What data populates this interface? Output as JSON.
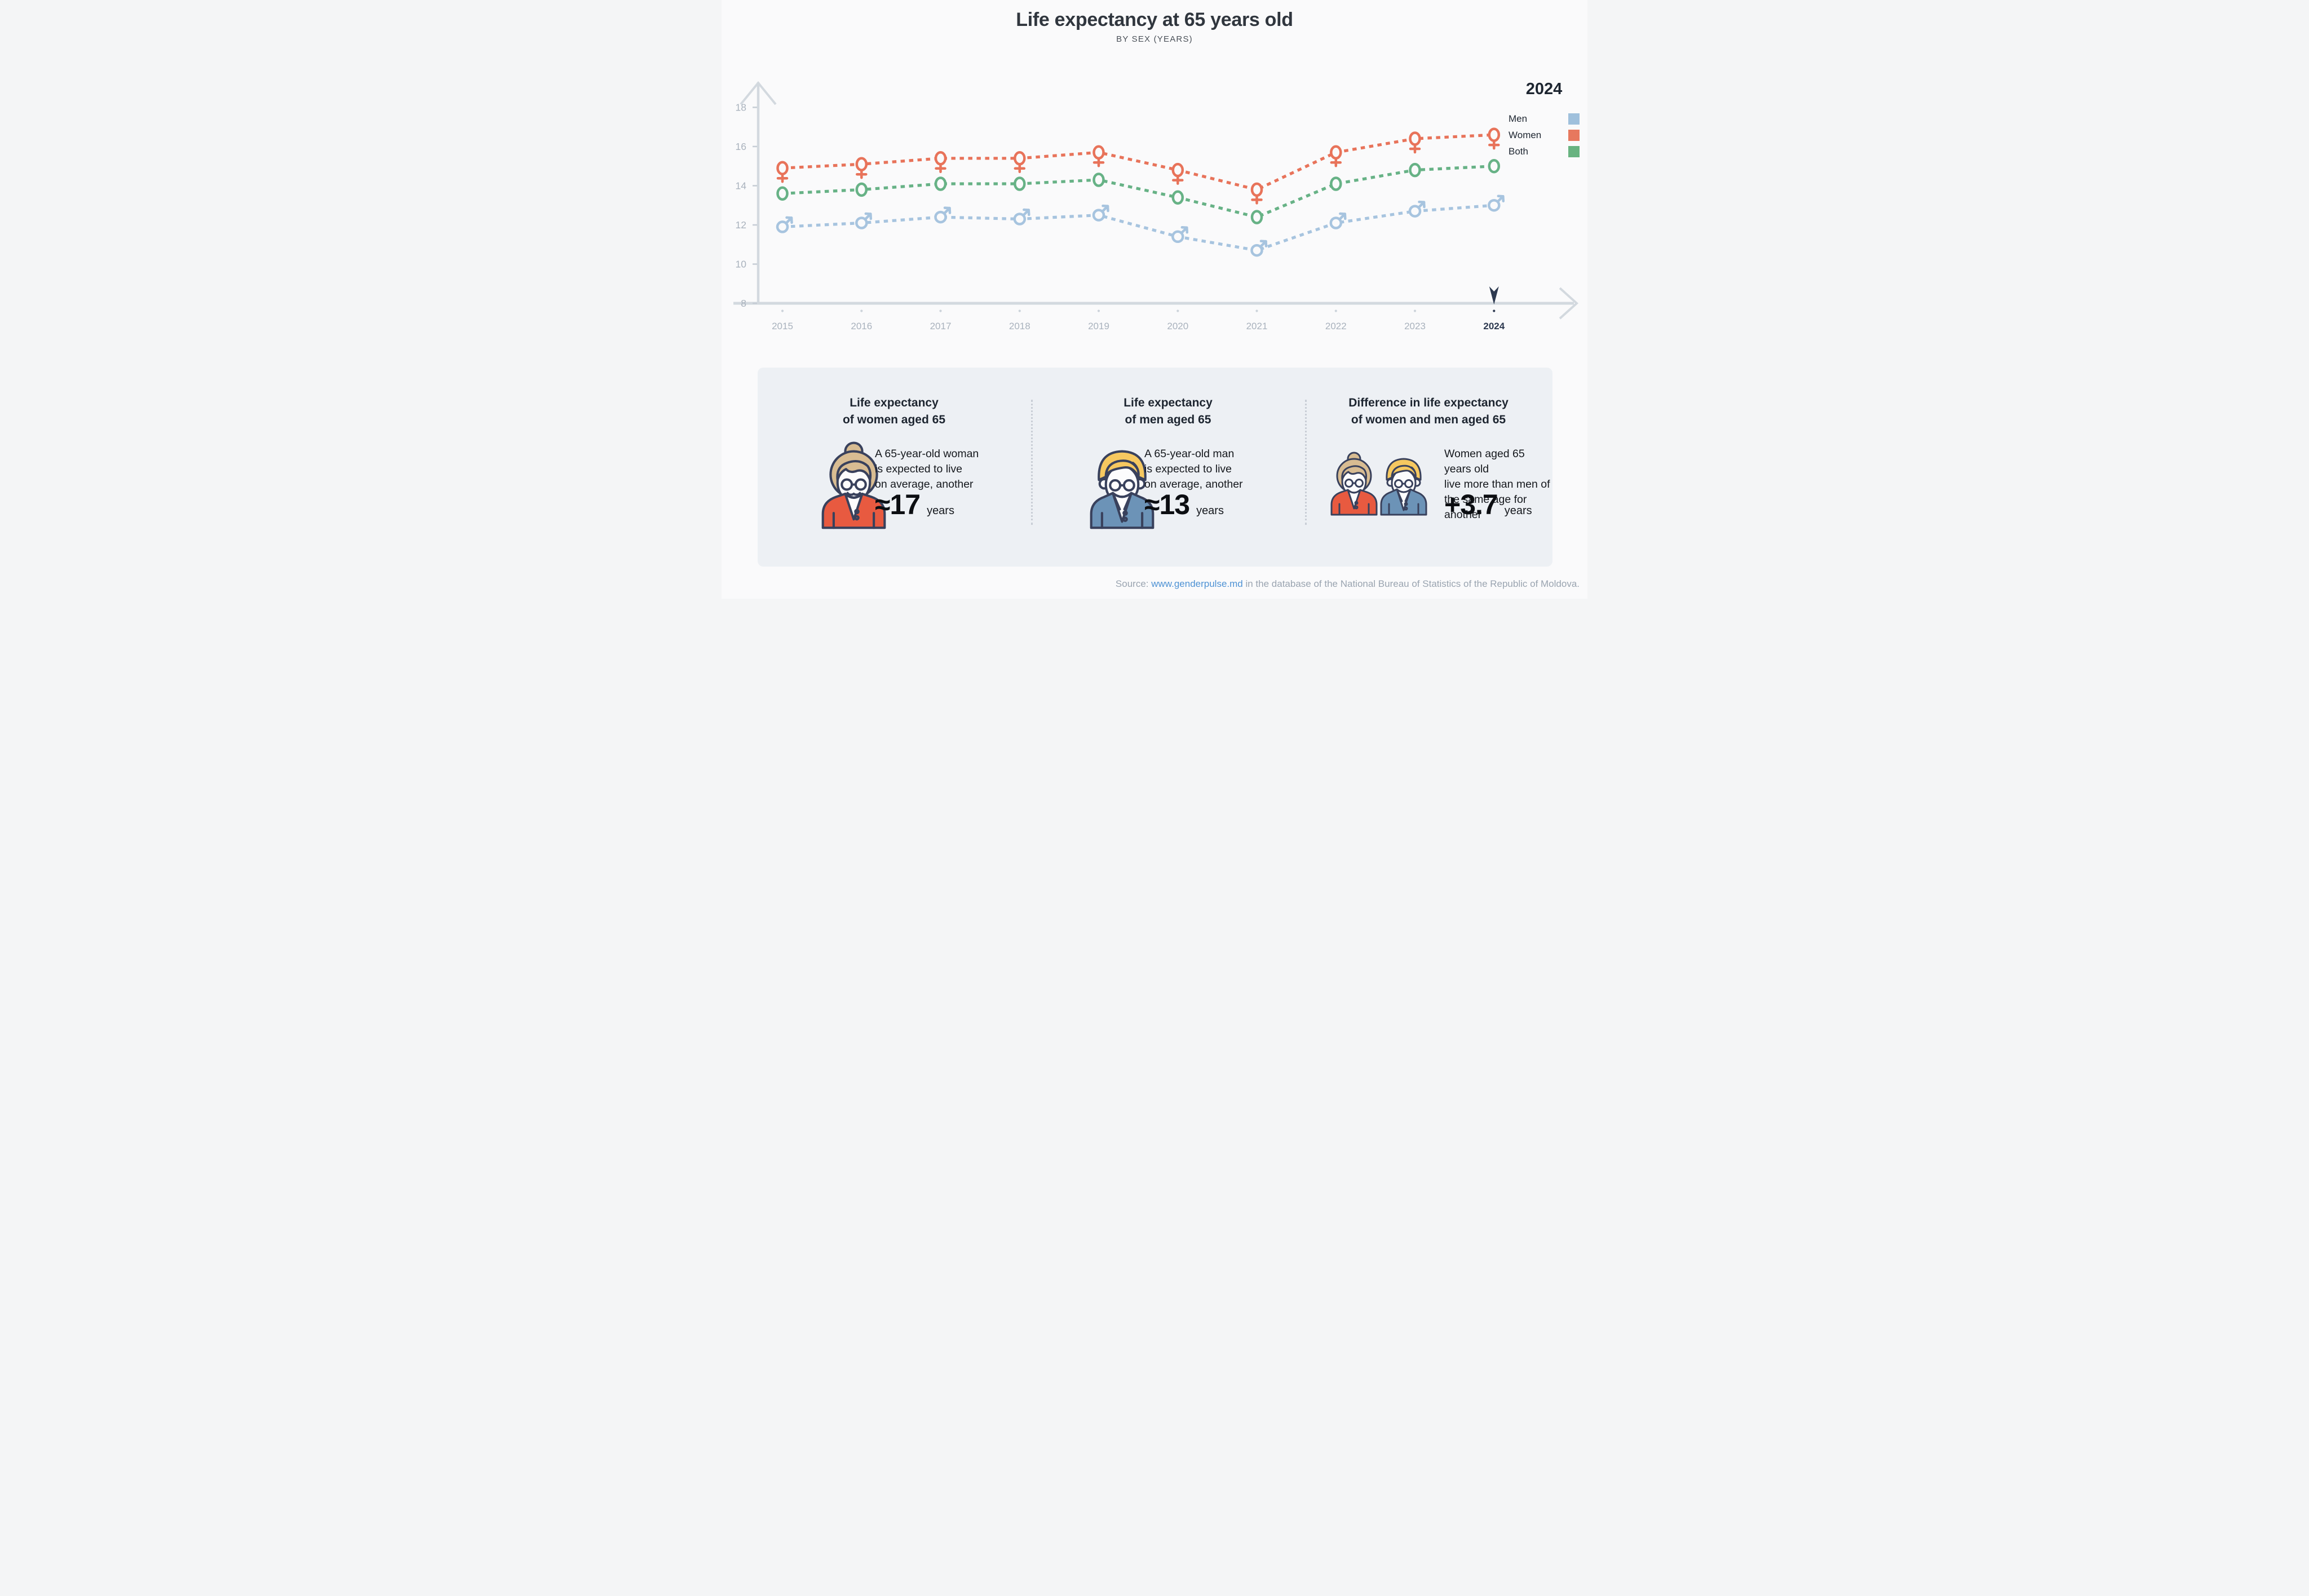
{
  "title": "Life expectancy at 65 years old",
  "subtitle": "BY SEX (YEARS)",
  "legend": {
    "year": "2024",
    "items": [
      {
        "label": "Men",
        "color": "#9FC0DC"
      },
      {
        "label": "Women",
        "color": "#E7785E"
      },
      {
        "label": "Both",
        "color": "#68B380"
      }
    ]
  },
  "chart_data": {
    "type": "line",
    "title": "Life expectancy at 65 years old, by sex (years)",
    "x": [
      2015,
      2016,
      2017,
      2018,
      2019,
      2020,
      2021,
      2022,
      2023,
      2024
    ],
    "series": [
      {
        "name": "Women",
        "marker": "female",
        "color": "#E8735A",
        "values": [
          14.9,
          15.1,
          15.4,
          15.4,
          15.7,
          14.8,
          13.8,
          15.7,
          16.4,
          16.6
        ]
      },
      {
        "name": "Both",
        "marker": "circle",
        "color": "#67B286",
        "values": [
          13.6,
          13.8,
          14.1,
          14.1,
          14.3,
          13.4,
          12.4,
          14.1,
          14.8,
          15.0
        ]
      },
      {
        "name": "Men",
        "marker": "male",
        "color": "#A7C4DF",
        "values": [
          11.9,
          12.1,
          12.4,
          12.3,
          12.5,
          11.4,
          10.7,
          12.1,
          12.7,
          13.0
        ]
      }
    ],
    "yticks": [
      8,
      10,
      12,
      14,
      16,
      18
    ],
    "ylim": [
      8,
      19
    ],
    "xlabel": "",
    "ylabel": "",
    "grid": false,
    "line_style": "dashed",
    "legend_position": "top-right",
    "highlight_year": 2024,
    "colors": {
      "axis": "#D3D9DF",
      "tick_text": "#A9B2BD",
      "dot": "#CCD3DA",
      "highlight": "#2D3950",
      "marker_bg": "#FAFAFB"
    }
  },
  "cards": [
    {
      "title_lines": [
        "Life expectancy",
        "of women aged 65"
      ],
      "text_lines": [
        "A 65-year-old woman",
        "is expected to live",
        "on average, another"
      ],
      "value": "≈17",
      "unit": "years"
    },
    {
      "title_lines": [
        "Life expectancy",
        "of men aged 65"
      ],
      "text_lines": [
        "A 65-year-old man",
        "is expected to live",
        "on average, another"
      ],
      "value": "≈13",
      "unit": "years"
    },
    {
      "title_lines": [
        "Difference in life expectancy",
        "of women and men aged 65"
      ],
      "text_lines": [
        "Women aged 65 years old",
        "live more than men of",
        "the same age for another"
      ],
      "value": "+3.7",
      "unit": "years"
    }
  ],
  "source": {
    "prefix": "Source: ",
    "link": "www.genderpulse.md",
    "suffix": " in the database of the National Bureau of Statistics of the Republic of Moldova."
  }
}
